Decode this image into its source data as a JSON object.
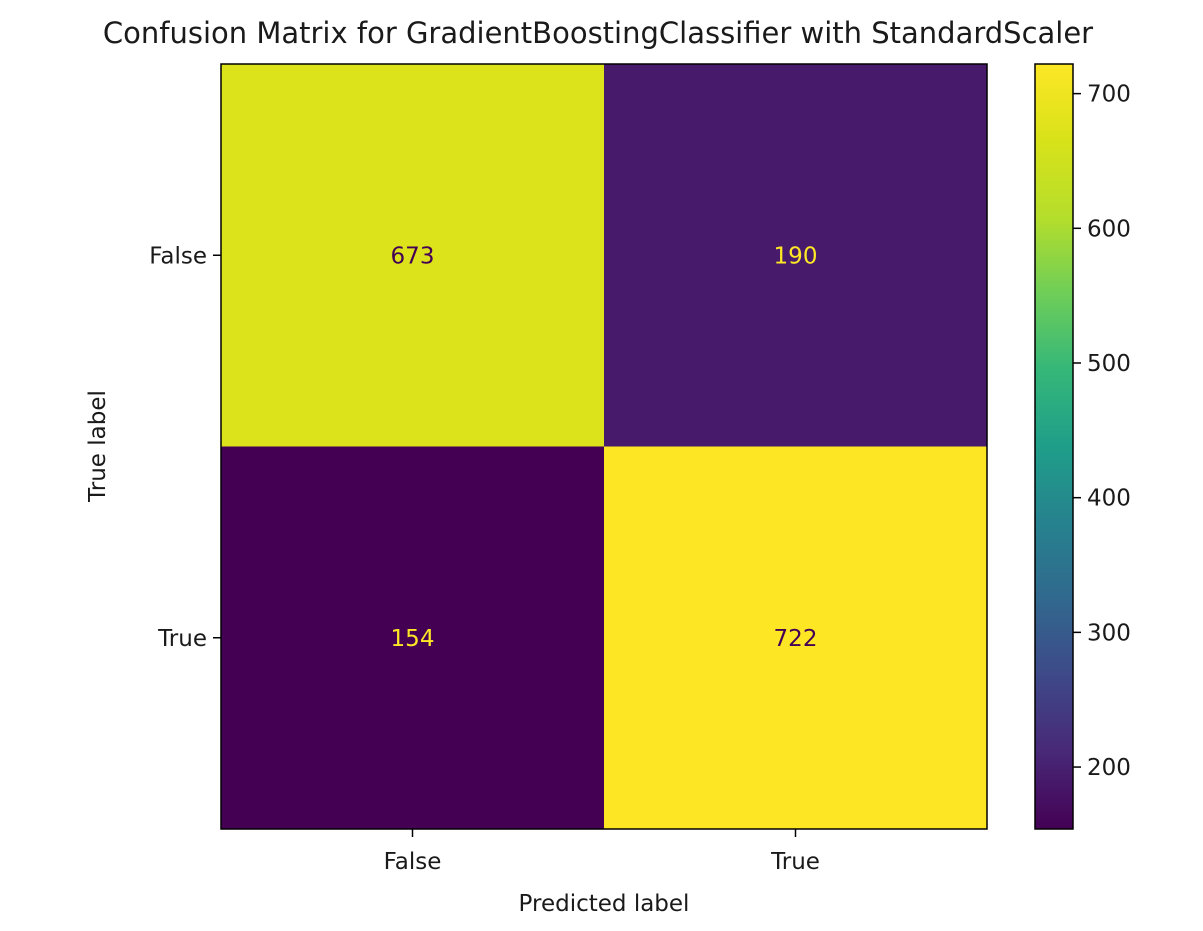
{
  "chart_data": {
    "type": "heatmap",
    "title": "Confusion Matrix for GradientBoostingClassifier with StandardScaler",
    "xlabel": "Predicted label",
    "ylabel": "True label",
    "x_categories": [
      "False",
      "True"
    ],
    "y_categories": [
      "False",
      "True"
    ],
    "values": [
      [
        673,
        190
      ],
      [
        154,
        722
      ]
    ],
    "colormap": "viridis",
    "colorbar": {
      "range": [
        154,
        722
      ],
      "ticks": [
        200,
        300,
        400,
        500,
        600,
        700
      ]
    }
  }
}
